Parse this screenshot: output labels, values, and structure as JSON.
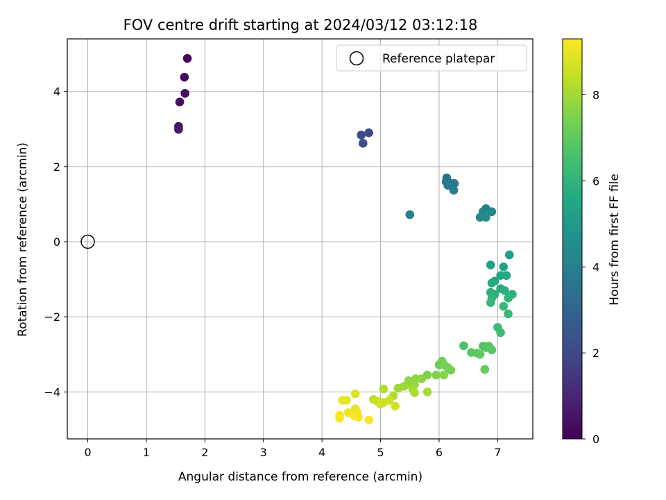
{
  "chart_data": {
    "type": "scatter",
    "title": "FOV centre drift starting at 2024/03/12 03:12:18",
    "xlabel": "Angular distance from reference (arcmin)",
    "ylabel": "Rotation from reference (arcmin)",
    "xlim": [
      -0.35,
      7.6
    ],
    "ylim": [
      -5.25,
      5.4
    ],
    "xticks": [
      0,
      1,
      2,
      3,
      4,
      5,
      6,
      7
    ],
    "yticks": [
      -4,
      -2,
      0,
      2,
      4
    ],
    "grid": true,
    "colorbar": {
      "label": "Hours from first FF file",
      "range": [
        0,
        9.3
      ],
      "ticks": [
        0,
        2,
        4,
        6,
        8
      ],
      "colormap": "viridis"
    },
    "legend": {
      "position": "top-right",
      "entries": [
        "Reference platepar"
      ]
    },
    "reference_point": {
      "name": "Reference platepar",
      "x": 0,
      "y": 0
    },
    "points": [
      {
        "x": 1.7,
        "y": 4.88,
        "h": 0.1
      },
      {
        "x": 1.65,
        "y": 4.38,
        "h": 0.2
      },
      {
        "x": 1.66,
        "y": 3.95,
        "h": 0.3
      },
      {
        "x": 1.57,
        "y": 3.72,
        "h": 0.4
      },
      {
        "x": 1.55,
        "y": 3.07,
        "h": 0.5
      },
      {
        "x": 1.55,
        "y": 2.99,
        "h": 0.6
      },
      {
        "x": 4.8,
        "y": 2.9,
        "h": 2.0
      },
      {
        "x": 4.67,
        "y": 2.84,
        "h": 2.1
      },
      {
        "x": 4.7,
        "y": 2.62,
        "h": 2.2
      },
      {
        "x": 6.13,
        "y": 1.7,
        "h": 3.5
      },
      {
        "x": 6.12,
        "y": 1.6,
        "h": 3.6
      },
      {
        "x": 6.2,
        "y": 1.55,
        "h": 3.7
      },
      {
        "x": 6.26,
        "y": 1.55,
        "h": 3.75
      },
      {
        "x": 6.15,
        "y": 1.5,
        "h": 3.8
      },
      {
        "x": 6.25,
        "y": 1.37,
        "h": 3.9
      },
      {
        "x": 5.5,
        "y": 0.72,
        "h": 4.0
      },
      {
        "x": 6.8,
        "y": 0.88,
        "h": 4.1
      },
      {
        "x": 6.75,
        "y": 0.8,
        "h": 4.2
      },
      {
        "x": 6.9,
        "y": 0.8,
        "h": 4.25
      },
      {
        "x": 6.7,
        "y": 0.65,
        "h": 4.3
      },
      {
        "x": 6.8,
        "y": 0.65,
        "h": 4.4
      },
      {
        "x": 7.2,
        "y": -0.35,
        "h": 5.2
      },
      {
        "x": 6.88,
        "y": -0.62,
        "h": 5.3
      },
      {
        "x": 7.1,
        "y": -0.67,
        "h": 5.4
      },
      {
        "x": 7.05,
        "y": -0.9,
        "h": 5.5
      },
      {
        "x": 7.15,
        "y": -0.9,
        "h": 5.55
      },
      {
        "x": 6.95,
        "y": -1.05,
        "h": 5.6
      },
      {
        "x": 6.9,
        "y": -1.1,
        "h": 5.7
      },
      {
        "x": 7.05,
        "y": -1.25,
        "h": 5.75
      },
      {
        "x": 6.88,
        "y": -1.35,
        "h": 5.8
      },
      {
        "x": 7.12,
        "y": -1.3,
        "h": 5.85
      },
      {
        "x": 6.95,
        "y": -1.4,
        "h": 5.9
      },
      {
        "x": 7.25,
        "y": -1.4,
        "h": 5.95
      },
      {
        "x": 6.9,
        "y": -1.5,
        "h": 6.0
      },
      {
        "x": 7.18,
        "y": -1.5,
        "h": 6.05
      },
      {
        "x": 6.88,
        "y": -1.62,
        "h": 6.1
      },
      {
        "x": 7.1,
        "y": -1.72,
        "h": 6.15
      },
      {
        "x": 7.18,
        "y": -1.92,
        "h": 6.2
      },
      {
        "x": 7.0,
        "y": -2.28,
        "h": 6.3
      },
      {
        "x": 7.05,
        "y": -2.42,
        "h": 6.4
      },
      {
        "x": 6.42,
        "y": -2.77,
        "h": 6.6
      },
      {
        "x": 6.75,
        "y": -2.78,
        "h": 6.7
      },
      {
        "x": 6.85,
        "y": -2.78,
        "h": 6.75
      },
      {
        "x": 6.8,
        "y": -2.82,
        "h": 6.8
      },
      {
        "x": 6.9,
        "y": -2.88,
        "h": 6.85
      },
      {
        "x": 6.55,
        "y": -2.95,
        "h": 6.9
      },
      {
        "x": 6.65,
        "y": -2.97,
        "h": 6.95
      },
      {
        "x": 6.7,
        "y": -3.0,
        "h": 7.0
      },
      {
        "x": 6.78,
        "y": -3.4,
        "h": 7.1
      },
      {
        "x": 6.0,
        "y": -3.28,
        "h": 7.2
      },
      {
        "x": 6.05,
        "y": -3.18,
        "h": 7.25
      },
      {
        "x": 6.15,
        "y": -3.35,
        "h": 7.3
      },
      {
        "x": 6.1,
        "y": -3.3,
        "h": 7.35
      },
      {
        "x": 6.2,
        "y": -3.42,
        "h": 7.4
      },
      {
        "x": 5.8,
        "y": -3.55,
        "h": 7.5
      },
      {
        "x": 5.95,
        "y": -3.55,
        "h": 7.55
      },
      {
        "x": 6.08,
        "y": -3.55,
        "h": 7.6
      },
      {
        "x": 5.6,
        "y": -3.65,
        "h": 7.65
      },
      {
        "x": 5.7,
        "y": -3.65,
        "h": 7.7
      },
      {
        "x": 5.48,
        "y": -3.7,
        "h": 7.75
      },
      {
        "x": 5.5,
        "y": -3.78,
        "h": 7.8
      },
      {
        "x": 5.58,
        "y": -3.8,
        "h": 7.85
      },
      {
        "x": 5.4,
        "y": -3.85,
        "h": 7.9
      },
      {
        "x": 5.3,
        "y": -3.9,
        "h": 7.95
      },
      {
        "x": 5.55,
        "y": -3.92,
        "h": 8.0
      },
      {
        "x": 5.8,
        "y": -4.0,
        "h": 8.05
      },
      {
        "x": 5.58,
        "y": -4.02,
        "h": 8.1
      },
      {
        "x": 5.22,
        "y": -4.1,
        "h": 8.2
      },
      {
        "x": 5.05,
        "y": -3.92,
        "h": 8.25
      },
      {
        "x": 4.88,
        "y": -4.2,
        "h": 8.4
      },
      {
        "x": 4.95,
        "y": -4.25,
        "h": 8.5
      },
      {
        "x": 5.05,
        "y": -4.28,
        "h": 8.55
      },
      {
        "x": 5.15,
        "y": -4.22,
        "h": 8.6
      },
      {
        "x": 5.0,
        "y": -4.32,
        "h": 8.65
      },
      {
        "x": 5.25,
        "y": -4.38,
        "h": 8.7
      },
      {
        "x": 4.57,
        "y": -4.05,
        "h": 8.8
      },
      {
        "x": 4.42,
        "y": -4.22,
        "h": 8.9
      },
      {
        "x": 4.35,
        "y": -4.22,
        "h": 8.95
      },
      {
        "x": 4.57,
        "y": -4.45,
        "h": 9.0
      },
      {
        "x": 4.45,
        "y": -4.55,
        "h": 9.05
      },
      {
        "x": 4.6,
        "y": -4.55,
        "h": 9.1
      },
      {
        "x": 4.3,
        "y": -4.62,
        "h": 9.15
      },
      {
        "x": 4.55,
        "y": -4.63,
        "h": 9.2
      },
      {
        "x": 4.62,
        "y": -4.67,
        "h": 9.2
      },
      {
        "x": 4.3,
        "y": -4.7,
        "h": 9.25
      },
      {
        "x": 4.8,
        "y": -4.75,
        "h": 9.25
      }
    ]
  }
}
